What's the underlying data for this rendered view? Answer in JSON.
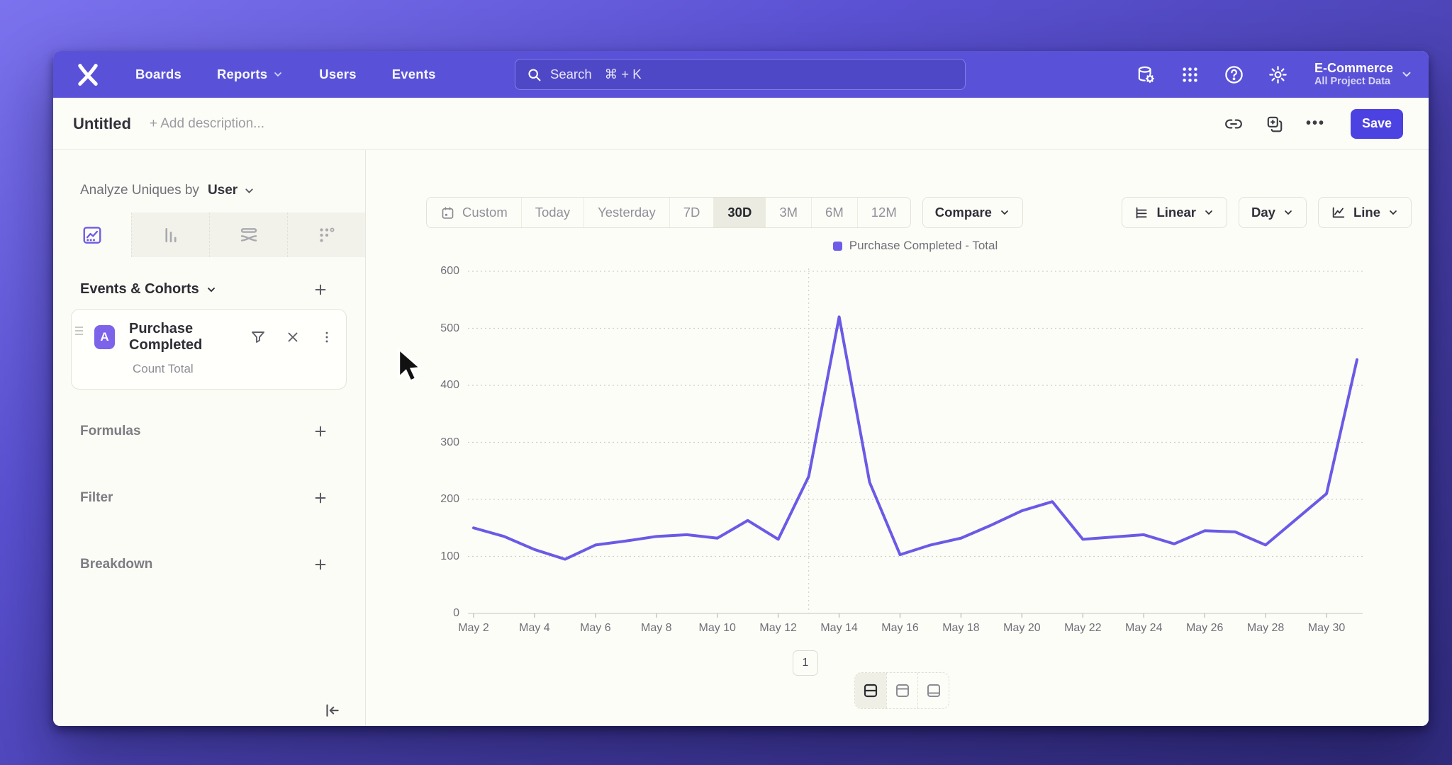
{
  "nav": {
    "items": [
      {
        "label": "Boards",
        "chevron": false
      },
      {
        "label": "Reports",
        "chevron": true
      },
      {
        "label": "Users",
        "chevron": false
      },
      {
        "label": "Events",
        "chevron": false
      }
    ],
    "search_label": "Search",
    "search_shortcut": "⌘ + K",
    "project_name": "E-Commerce",
    "project_scope": "All Project Data"
  },
  "title_bar": {
    "title": "Untitled",
    "description_placeholder": "+ Add description...",
    "more_label": "•••",
    "save_label": "Save"
  },
  "sidebar": {
    "analyze_prefix": "Analyze Uniques by",
    "analyze_value": "User",
    "view_tabs": [
      "insights-line-chart",
      "bar-chart",
      "flow",
      "retention-grid"
    ],
    "active_view_tab": "insights-line-chart",
    "events_header": "Events & Cohorts",
    "event_card": {
      "badge": "A",
      "name": "Purchase Completed",
      "metric": "Count Total"
    },
    "sections": [
      {
        "label": "Formulas"
      },
      {
        "label": "Filter"
      },
      {
        "label": "Breakdown"
      }
    ]
  },
  "toolbar": {
    "date_ranges": [
      "Custom",
      "Today",
      "Yesterday",
      "7D",
      "30D",
      "3M",
      "6M",
      "12M"
    ],
    "active_range": "30D",
    "compare_label": "Compare",
    "scale_label": "Linear",
    "interval_label": "Day",
    "chart_type_label": "Line"
  },
  "pagination": {
    "page": "1"
  },
  "chart_data": {
    "type": "line",
    "title": "Purchase Completed - Total",
    "legend_position": "top-center",
    "grid": "horizontal-dotted",
    "ylim": [
      0,
      600
    ],
    "yticks": [
      0,
      100,
      200,
      300,
      400,
      500,
      600
    ],
    "x": [
      "May 2",
      "May 3",
      "May 4",
      "May 5",
      "May 6",
      "May 7",
      "May 8",
      "May 9",
      "May 10",
      "May 11",
      "May 12",
      "May 13",
      "May 14",
      "May 15",
      "May 16",
      "May 17",
      "May 18",
      "May 19",
      "May 20",
      "May 21",
      "May 22",
      "May 23",
      "May 24",
      "May 25",
      "May 26",
      "May 27",
      "May 28",
      "May 29",
      "May 30",
      "May 31"
    ],
    "x_tick_labels": [
      "May 2",
      "May 4",
      "May 6",
      "May 8",
      "May 10",
      "May 12",
      "May 14",
      "May 16",
      "May 18",
      "May 20",
      "May 22",
      "May 24",
      "May 26",
      "May 28",
      "May 30"
    ],
    "vertical_gridline_at": "May 13",
    "series": [
      {
        "name": "Purchase Completed - Total",
        "color": "#6a5ae6",
        "values": [
          150,
          135,
          112,
          95,
          120,
          127,
          135,
          138,
          132,
          163,
          130,
          240,
          520,
          230,
          103,
          120,
          132,
          155,
          180,
          196,
          130,
          134,
          138,
          122,
          145,
          143,
          120,
          165,
          210,
          445
        ]
      }
    ]
  },
  "colors": {
    "nav_bg": "#5952d8",
    "accent": "#4c42e2",
    "line": "#6a5ae6",
    "legend_swatch": "#6e5ce9"
  }
}
